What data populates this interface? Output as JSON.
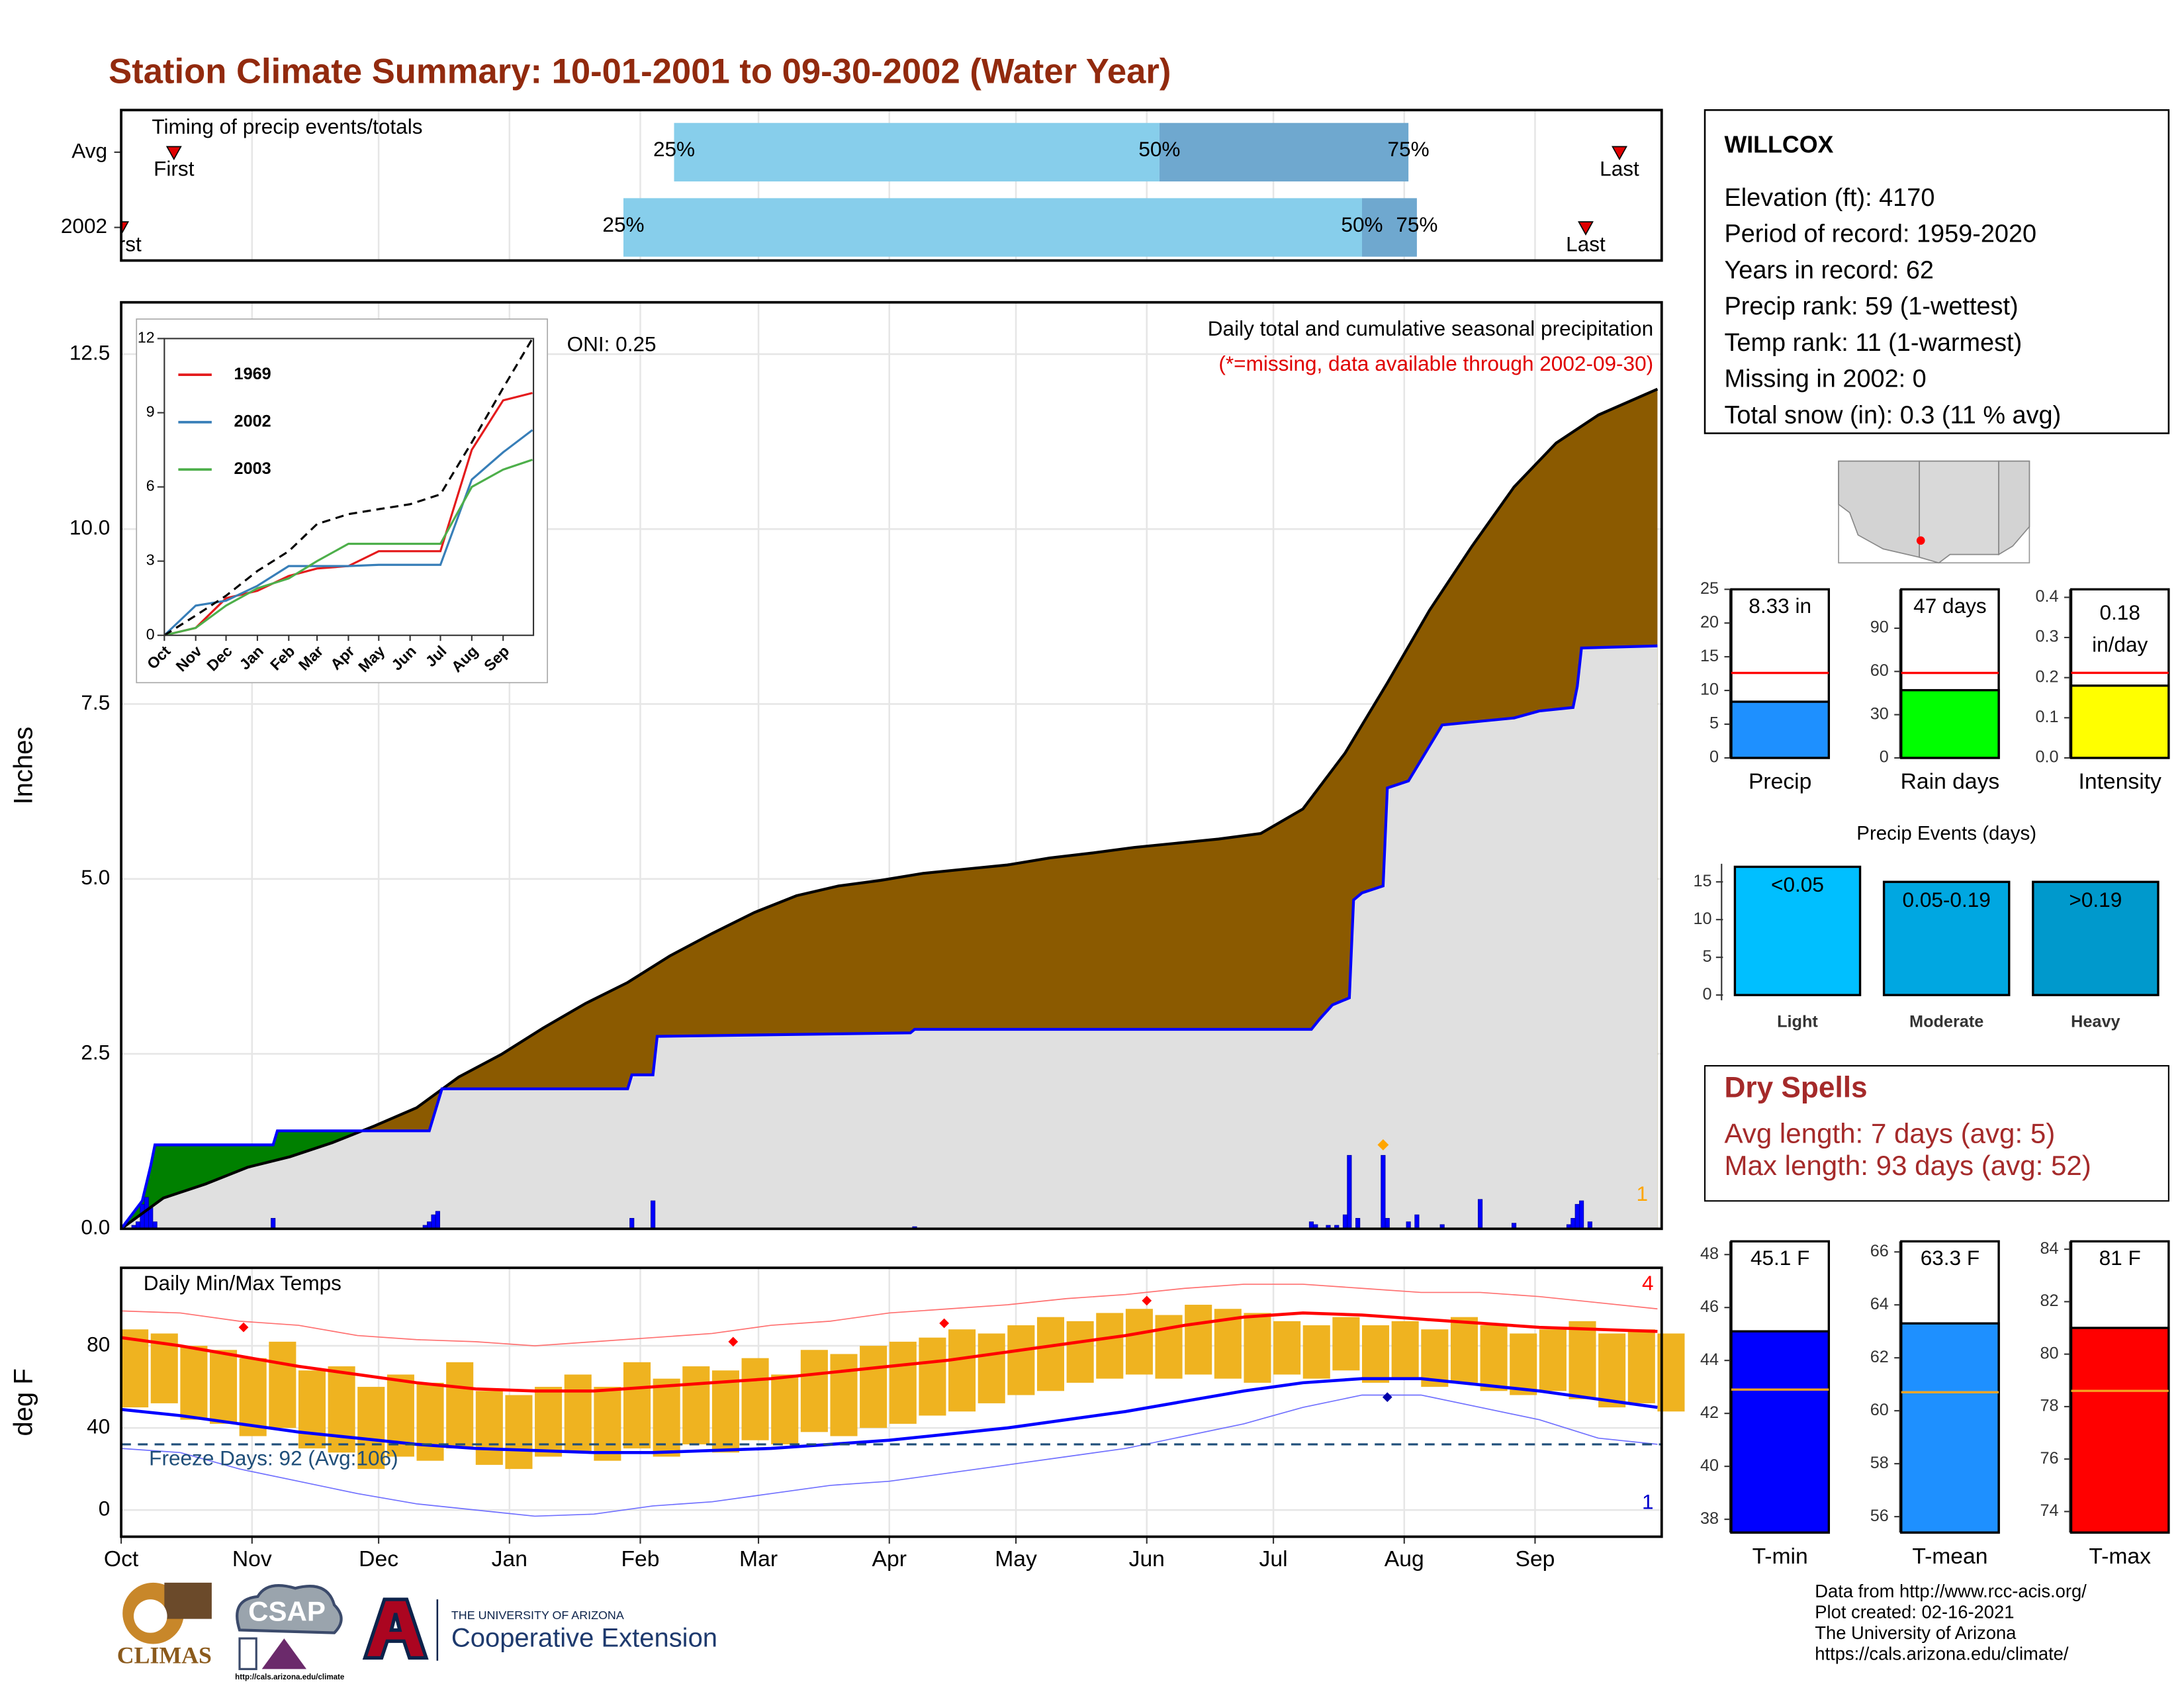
{
  "header": {
    "title": "Station Climate Summary: 10-01-2001 to 09-30-2002 (Water Year)"
  },
  "station": {
    "name": "WILLCOX",
    "lines": [
      "Elevation (ft): 4170",
      "Period of record: 1959-2020",
      "Years in record: 62",
      "Precip rank: 59 (1-wettest)",
      "Temp rank: 11 (1-warmest)",
      "Missing in 2002: 0",
      "Total snow (in): 0.3 (11 % avg)"
    ]
  },
  "dry_spells": {
    "title": "Dry Spells",
    "lines": [
      "Avg length: 7 days (avg: 5)",
      "Max length: 93 days (avg: 52)"
    ]
  },
  "footer": {
    "lines": [
      "Data from http://www.rcc-acis.org/",
      "Plot created: 02-16-2021",
      "The University of Arizona",
      "https://cals.arizona.edu/climate/"
    ]
  },
  "logos": {
    "climas": "CLIMAS",
    "csap": "CSAP",
    "csap_url": "http://cals.arizona.edu/climate",
    "university": "THE UNIVERSITY OF ARIZONA",
    "extension": "Cooperative Extension"
  },
  "chart_data": [
    {
      "type": "timeline",
      "title": "Timing of precip events/totals",
      "categories": [
        "Avg",
        "2002"
      ],
      "xlim": [
        0,
        365
      ],
      "first_label": "First",
      "last_label": "Last",
      "quartile_labels": [
        "25%",
        "50%",
        "75%"
      ],
      "colors": [
        "#87ceeb",
        "#6fa8cf"
      ],
      "marker_color": "#e00000",
      "first": [
        12.5,
        0
      ],
      "quartiles": [
        [
          131,
          246,
          305
        ],
        [
          119,
          294,
          307
        ]
      ],
      "last": [
        355,
        347
      ]
    },
    {
      "type": "area",
      "title": "Daily total and cumulative seasonal precipitation",
      "subtitle": "(*=missing, data available through 2002-09-30)",
      "annotation": "ONI: 0.25",
      "corner_label": "1",
      "ylabel": "Inches",
      "xlim": [
        0,
        365
      ],
      "ylim": [
        0,
        13.24
      ],
      "grid": true,
      "base_fill": "#e0e0e0",
      "yticks": [
        {
          "value": 0,
          "label": "0.0"
        },
        2.5,
        {
          "value": 5,
          "label": "5.0"
        },
        7.5,
        {
          "value": 10,
          "label": "10.0"
        },
        12.5
      ],
      "series": [
        {
          "color": "#000000",
          "fill": "#8b5a00",
          "x": [
            0,
            10,
            20,
            30,
            40,
            50,
            60,
            70,
            80,
            90,
            100,
            110,
            120,
            130,
            140,
            150,
            160,
            170,
            180,
            190,
            200,
            210,
            220,
            230,
            240,
            250,
            260,
            270,
            280,
            290,
            300,
            310,
            320,
            330,
            340,
            350,
            364
          ],
          "values": [
            0,
            0.44,
            0.64,
            0.88,
            1.03,
            1.23,
            1.47,
            1.73,
            2.17,
            2.49,
            2.87,
            3.22,
            3.52,
            3.9,
            4.22,
            4.52,
            4.76,
            4.9,
            4.98,
            5.08,
            5.14,
            5.2,
            5.3,
            5.37,
            5.45,
            5.51,
            5.57,
            5.65,
            6.0,
            6.8,
            7.8,
            8.84,
            9.75,
            10.6,
            11.23,
            11.63,
            12.0
          ]
        },
        {
          "color": "#0000ff",
          "fill": "#008000",
          "x": [
            0,
            5,
            7,
            8,
            36,
            37,
            73,
            74,
            75,
            76,
            120,
            121,
            126,
            127,
            187,
            188,
            282,
            284,
            287,
            291,
            292,
            294,
            299,
            300,
            305,
            307,
            313,
            330,
            336,
            344,
            345,
            346,
            364
          ],
          "values": [
            0,
            0.4,
            0.9,
            1.2,
            1.2,
            1.4,
            1.4,
            1.6,
            1.8,
            2.0,
            2.0,
            2.2,
            2.2,
            2.75,
            2.8,
            2.85,
            2.85,
            3.0,
            3.2,
            3.3,
            4.7,
            4.8,
            4.9,
            6.3,
            6.4,
            6.6,
            7.2,
            7.3,
            7.4,
            7.45,
            7.75,
            8.3,
            8.33
          ]
        },
        {
          "type": "bar",
          "color": "#0000ff",
          "x": [
            3,
            4,
            5,
            6,
            7,
            8,
            36,
            72,
            73,
            74,
            75,
            121,
            126,
            188,
            282,
            283,
            286,
            288,
            290,
            291,
            293,
            299,
            300,
            305,
            307,
            313,
            322,
            330,
            343,
            344,
            345,
            346,
            348
          ],
          "values": [
            0.05,
            0.1,
            0.35,
            0.45,
            0.3,
            0.1,
            0.15,
            0.05,
            0.1,
            0.2,
            0.25,
            0.15,
            0.4,
            0.03,
            0.1,
            0.06,
            0.05,
            0.05,
            0.2,
            1.05,
            0.15,
            1.05,
            0.15,
            0.1,
            0.2,
            0.06,
            0.42,
            0.08,
            0.06,
            0.15,
            0.35,
            0.4,
            0.1
          ]
        }
      ],
      "markers": {
        "color": "#ffa500",
        "x": [
          299
        ],
        "values": [
          1.2
        ]
      }
    },
    {
      "type": "line",
      "xlim": [
        0,
        365
      ],
      "ylim": [
        0,
        12
      ],
      "yticks": [
        0,
        3,
        6,
        9,
        12
      ],
      "xticks": [
        {
          "value": 0,
          "label": "Oct"
        },
        {
          "value": 31,
          "label": "Nov"
        },
        {
          "value": 61,
          "label": "Dec"
        },
        {
          "value": 92,
          "label": "Jan"
        },
        {
          "value": 123,
          "label": "Feb"
        },
        {
          "value": 151,
          "label": "Mar"
        },
        {
          "value": 182,
          "label": "Apr"
        },
        {
          "value": 212,
          "label": "May"
        },
        {
          "value": 243,
          "label": "Jun"
        },
        {
          "value": 273,
          "label": "Jul"
        },
        {
          "value": 304,
          "label": "Aug"
        },
        {
          "value": 335,
          "label": "Sep"
        }
      ],
      "x": [
        0,
        31,
        61,
        92,
        123,
        151,
        182,
        212,
        243,
        273,
        304,
        335,
        364
      ],
      "series": [
        {
          "name": "1969",
          "color": "#e41a1c",
          "values": [
            0,
            0.3,
            1.5,
            1.8,
            2.4,
            2.7,
            2.8,
            3.4,
            3.4,
            3.4,
            7.5,
            9.5,
            9.8
          ]
        },
        {
          "name": "2002",
          "color": "#377eb8",
          "values": [
            0,
            1.2,
            1.4,
            2.0,
            2.8,
            2.8,
            2.8,
            2.85,
            2.85,
            2.85,
            6.3,
            7.4,
            8.3
          ]
        },
        {
          "name": "2003",
          "color": "#4daf4a",
          "values": [
            0,
            0.3,
            1.2,
            1.9,
            2.3,
            3.0,
            3.7,
            3.7,
            3.7,
            3.7,
            6.0,
            6.7,
            7.1
          ]
        },
        {
          "color": "#000000",
          "dash": true,
          "values": [
            0,
            0.8,
            1.6,
            2.6,
            3.4,
            4.5,
            4.9,
            5.1,
            5.3,
            5.7,
            7.8,
            10.0,
            12.0
          ]
        }
      ]
    },
    {
      "type": "range",
      "title": "Daily Min/Max Temps",
      "ylabel": "deg F",
      "xlim": [
        0,
        365
      ],
      "ylim": [
        -13,
        118
      ],
      "yticks": [
        0,
        40,
        80
      ],
      "grid": true,
      "xticks": [
        {
          "value": 0,
          "label": "Oct"
        },
        {
          "value": 31,
          "label": "Nov"
        },
        {
          "value": 61,
          "label": "Dec"
        },
        {
          "value": 92,
          "label": "Jan"
        },
        {
          "value": 123,
          "label": "Feb"
        },
        {
          "value": 151,
          "label": "Mar"
        },
        {
          "value": 182,
          "label": "Apr"
        },
        {
          "value": 212,
          "label": "May"
        },
        {
          "value": 243,
          "label": "Jun"
        },
        {
          "value": 273,
          "label": "Jul"
        },
        {
          "value": 304,
          "label": "Aug"
        },
        {
          "value": 335,
          "label": "Sep"
        }
      ],
      "top_right_label": "4",
      "bottom_right_label": "1",
      "freeze_line": 32,
      "freeze_label": "Freeze Days: 92 (Avg:106)",
      "bar_color": "#efb320",
      "daily": {
        "x": [
          0,
          7,
          14,
          21,
          28,
          35,
          42,
          49,
          56,
          63,
          70,
          77,
          84,
          91,
          98,
          105,
          112,
          119,
          126,
          133,
          140,
          147,
          154,
          161,
          168,
          175,
          182,
          189,
          196,
          203,
          210,
          217,
          224,
          231,
          238,
          245,
          252,
          259,
          266,
          273,
          280,
          287,
          294,
          301,
          308,
          315,
          322,
          329,
          336,
          343,
          350,
          357,
          364
        ],
        "max": [
          88,
          86,
          80,
          78,
          74,
          82,
          68,
          70,
          60,
          66,
          62,
          72,
          58,
          56,
          60,
          66,
          60,
          72,
          64,
          70,
          68,
          74,
          66,
          78,
          76,
          80,
          82,
          84,
          88,
          86,
          90,
          94,
          92,
          96,
          98,
          95,
          100,
          98,
          96,
          92,
          90,
          94,
          90,
          92,
          88,
          94,
          90,
          86,
          88,
          92,
          86,
          88,
          86
        ],
        "min": [
          50,
          52,
          44,
          42,
          36,
          40,
          30,
          28,
          20,
          26,
          24,
          30,
          22,
          20,
          26,
          28,
          24,
          30,
          26,
          32,
          28,
          34,
          32,
          38,
          36,
          40,
          42,
          46,
          48,
          52,
          56,
          58,
          62,
          64,
          66,
          64,
          66,
          64,
          62,
          66,
          64,
          68,
          62,
          64,
          60,
          62,
          58,
          56,
          58,
          54,
          50,
          52,
          48
        ]
      },
      "x": [
        0,
        14,
        28,
        42,
        56,
        70,
        84,
        98,
        112,
        126,
        140,
        154,
        168,
        182,
        196,
        210,
        224,
        238,
        252,
        266,
        280,
        294,
        308,
        322,
        336,
        350,
        364
      ],
      "series": [
        {
          "color": "#ff0000",
          "width": 2.2,
          "values": [
            84,
            80,
            75,
            70,
            66,
            62,
            59,
            58,
            58,
            60,
            62,
            64,
            67,
            70,
            73,
            77,
            81,
            85,
            90,
            94,
            96,
            95,
            93,
            91,
            89,
            88,
            87
          ]
        },
        {
          "color": "#0000ff",
          "width": 2.2,
          "values": [
            49,
            46,
            42,
            38,
            35,
            32,
            30,
            29,
            28,
            28,
            29,
            30,
            32,
            34,
            37,
            40,
            44,
            48,
            53,
            58,
            62,
            64,
            64,
            61,
            58,
            54,
            50
          ]
        },
        {
          "color": "#ff7070",
          "width": 0.8,
          "values": [
            97,
            96,
            92,
            90,
            85,
            83,
            82,
            80,
            82,
            84,
            86,
            90,
            92,
            96,
            98,
            100,
            103,
            105,
            108,
            110,
            110,
            108,
            106,
            106,
            104,
            101,
            98
          ]
        },
        {
          "color": "#7070ff",
          "width": 0.8,
          "values": [
            30,
            28,
            20,
            14,
            8,
            3,
            0,
            -3,
            -2,
            2,
            4,
            8,
            12,
            14,
            18,
            22,
            26,
            30,
            36,
            42,
            50,
            56,
            56,
            50,
            44,
            35,
            32
          ]
        }
      ],
      "markers": [
        {
          "color": "#ff0000",
          "x": [
            29,
            145,
            195,
            243
          ],
          "values": [
            89,
            82,
            91,
            102
          ]
        },
        {
          "color": "#0000aa",
          "x": [
            300
          ],
          "values": [
            55
          ]
        }
      ]
    },
    {
      "type": "bar",
      "categories": [
        "Precip"
      ],
      "values": [
        8.33
      ],
      "value_labels": [
        "8.33 in"
      ],
      "avg": 12.6,
      "color": "#1e90ff",
      "avg_color": "#ff0000",
      "ylim": [
        0,
        25
      ],
      "yticks": [
        0,
        5,
        10,
        15,
        20,
        25
      ]
    },
    {
      "type": "bar",
      "categories": [
        "Rain days"
      ],
      "values": [
        47
      ],
      "value_labels": [
        "47 days"
      ],
      "avg": 59,
      "color": "#00ff00",
      "avg_color": "#ff0000",
      "ylim": [
        0,
        117
      ],
      "yticks": [
        0,
        30,
        60,
        90
      ]
    },
    {
      "type": "bar",
      "categories": [
        "Intensity"
      ],
      "values": [
        0.18
      ],
      "value_labels": [
        "0.18\nin/day"
      ],
      "avg": 0.212,
      "color": "#ffff00",
      "avg_color": "#ff0000",
      "ylim": [
        0,
        0.42
      ],
      "yticks": [
        {
          "value": 0,
          "label": "0.0"
        },
        0.1,
        0.2,
        0.3,
        0.4
      ]
    },
    {
      "type": "bar",
      "title": "Precip Events (days)",
      "categories": [
        "Light",
        "Moderate",
        "Heavy"
      ],
      "bar_labels": [
        "<0.05",
        "0.05-0.19",
        ">0.19"
      ],
      "values": [
        17,
        15,
        15
      ],
      "colors": [
        "#00bfff",
        "#00a7e1",
        "#0099cc"
      ],
      "ylim": [
        -0.7,
        17.4
      ],
      "yticks": [
        0,
        5,
        10,
        15
      ]
    },
    {
      "type": "bar",
      "categories": [
        "T-min"
      ],
      "values": [
        45.1
      ],
      "value_labels": [
        "45.1 F"
      ],
      "avg": 42.9,
      "color": "#0000ff",
      "avg_color": "#f5a623",
      "ylim": [
        37.5,
        48.5
      ],
      "yticks": [
        38,
        40,
        42,
        44,
        46,
        48
      ]
    },
    {
      "type": "bar",
      "categories": [
        "T-mean"
      ],
      "values": [
        63.3
      ],
      "value_labels": [
        "63.3 F"
      ],
      "avg": 60.7,
      "color": "#1e90ff",
      "avg_color": "#f5a623",
      "ylim": [
        55.4,
        66.4
      ],
      "yticks": [
        56,
        58,
        60,
        62,
        64,
        66
      ]
    },
    {
      "type": "bar",
      "categories": [
        "T-max"
      ],
      "values": [
        81
      ],
      "value_labels": [
        "81 F"
      ],
      "avg": 78.6,
      "color": "#ff0000",
      "avg_color": "#f5a623",
      "ylim": [
        73.2,
        84.3
      ],
      "yticks": [
        74,
        76,
        78,
        80,
        82,
        84
      ]
    }
  ]
}
